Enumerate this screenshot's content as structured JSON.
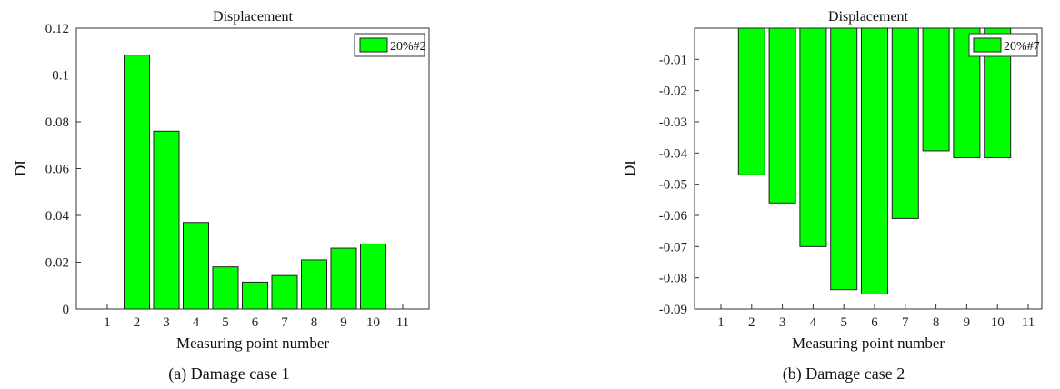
{
  "chart_data": [
    {
      "type": "bar",
      "title": "Displacement",
      "caption": "(a) Damage case 1",
      "xlabel": "Measuring point number",
      "ylabel": "DI",
      "categories": [
        "1",
        "2",
        "3",
        "4",
        "5",
        "6",
        "7",
        "8",
        "9",
        "10",
        "11"
      ],
      "series": [
        {
          "name": "20%#2",
          "values": [
            0,
            0.1085,
            0.076,
            0.037,
            0.018,
            0.0115,
            0.0143,
            0.021,
            0.026,
            0.0278,
            0
          ]
        }
      ],
      "ylim": [
        0,
        0.12
      ],
      "yticks": [
        0,
        0.02,
        0.04,
        0.06,
        0.08,
        0.1,
        0.12
      ],
      "ytick_labels": [
        "0",
        "0.02",
        "0.04",
        "0.06",
        "0.08",
        "0.1",
        "0.12"
      ],
      "bar_color": "#00ff00",
      "legend_position": "top-right",
      "grid": false
    },
    {
      "type": "bar",
      "title": "Displacement",
      "caption": "(b) Damage case 2",
      "xlabel": "Measuring point number",
      "ylabel": "DI",
      "categories": [
        "1",
        "2",
        "3",
        "4",
        "5",
        "6",
        "7",
        "8",
        "9",
        "10",
        "11"
      ],
      "series": [
        {
          "name": "20%#7",
          "values": [
            0,
            -0.047,
            -0.056,
            -0.07,
            -0.0838,
            -0.0852,
            -0.061,
            -0.0393,
            -0.0415,
            -0.0415,
            0
          ]
        }
      ],
      "ylim": [
        -0.09,
        0
      ],
      "yticks": [
        -0.09,
        -0.08,
        -0.07,
        -0.06,
        -0.05,
        -0.04,
        -0.03,
        -0.02,
        -0.01
      ],
      "ytick_labels": [
        "-0.09",
        "-0.08",
        "-0.07",
        "-0.06",
        "-0.05",
        "-0.04",
        "-0.03",
        "-0.02",
        "-0.01"
      ],
      "bar_color": "#00ff00",
      "legend_position": "top-right",
      "grid": false
    }
  ]
}
